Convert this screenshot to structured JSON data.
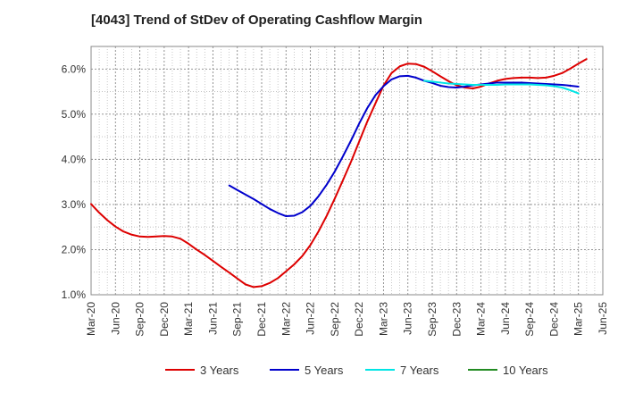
{
  "chart_data": {
    "type": "line",
    "title": "[4043]  Trend of StDev of Operating Cashflow Margin",
    "xlabel": "",
    "ylabel": "",
    "ylim": [
      1.0,
      6.5
    ],
    "yticks": [
      1.0,
      2.0,
      3.0,
      4.0,
      5.0,
      6.0
    ],
    "ytick_labels": [
      "1.0%",
      "2.0%",
      "3.0%",
      "4.0%",
      "5.0%",
      "6.0%"
    ],
    "x_categories": [
      "Mar-20",
      "Jun-20",
      "Sep-20",
      "Dec-20",
      "Mar-21",
      "Jun-21",
      "Sep-21",
      "Dec-21",
      "Mar-22",
      "Jun-22",
      "Sep-22",
      "Dec-22",
      "Mar-23",
      "Jun-23",
      "Sep-23",
      "Dec-23",
      "Mar-24",
      "Jun-24",
      "Sep-24",
      "Dec-24",
      "Mar-25",
      "Jun-25"
    ],
    "grid": true,
    "legend_position": "bottom",
    "series": [
      {
        "name": "3 Years",
        "color": "#dd0000",
        "points": [
          [
            0,
            3.01
          ],
          [
            0.33,
            2.82
          ],
          [
            0.67,
            2.65
          ],
          [
            1,
            2.51
          ],
          [
            1.33,
            2.4
          ],
          [
            1.67,
            2.33
          ],
          [
            2,
            2.29
          ],
          [
            2.33,
            2.28
          ],
          [
            2.67,
            2.29
          ],
          [
            3,
            2.3
          ],
          [
            3.33,
            2.29
          ],
          [
            3.67,
            2.24
          ],
          [
            4,
            2.13
          ],
          [
            4.33,
            2.0
          ],
          [
            4.67,
            1.88
          ],
          [
            5,
            1.75
          ],
          [
            5.33,
            1.62
          ],
          [
            5.67,
            1.49
          ],
          [
            6,
            1.36
          ],
          [
            6.33,
            1.23
          ],
          [
            6.67,
            1.17
          ],
          [
            7,
            1.19
          ],
          [
            7.33,
            1.26
          ],
          [
            7.67,
            1.37
          ],
          [
            8,
            1.52
          ],
          [
            8.33,
            1.67
          ],
          [
            8.67,
            1.86
          ],
          [
            9,
            2.1
          ],
          [
            9.33,
            2.4
          ],
          [
            9.67,
            2.75
          ],
          [
            10,
            3.13
          ],
          [
            10.33,
            3.53
          ],
          [
            10.67,
            3.95
          ],
          [
            11,
            4.39
          ],
          [
            11.33,
            4.83
          ],
          [
            11.67,
            5.24
          ],
          [
            12,
            5.63
          ],
          [
            12.33,
            5.91
          ],
          [
            12.67,
            6.06
          ],
          [
            13,
            6.12
          ],
          [
            13.33,
            6.11
          ],
          [
            13.67,
            6.05
          ],
          [
            14,
            5.95
          ],
          [
            14.33,
            5.84
          ],
          [
            14.67,
            5.73
          ],
          [
            15,
            5.64
          ],
          [
            15.33,
            5.59
          ],
          [
            15.67,
            5.57
          ],
          [
            16,
            5.61
          ],
          [
            16.33,
            5.68
          ],
          [
            16.67,
            5.74
          ],
          [
            17,
            5.78
          ],
          [
            17.33,
            5.8
          ],
          [
            17.67,
            5.81
          ],
          [
            18,
            5.81
          ],
          [
            18.33,
            5.8
          ],
          [
            18.67,
            5.81
          ],
          [
            19,
            5.85
          ],
          [
            19.33,
            5.91
          ],
          [
            19.67,
            6.01
          ],
          [
            20,
            6.12
          ],
          [
            20.33,
            6.22
          ]
        ]
      },
      {
        "name": "5 Years",
        "color": "#0000cc",
        "points": [
          [
            5.67,
            3.42
          ],
          [
            6,
            3.32
          ],
          [
            6.33,
            3.22
          ],
          [
            6.67,
            3.12
          ],
          [
            7,
            3.01
          ],
          [
            7.33,
            2.9
          ],
          [
            7.67,
            2.81
          ],
          [
            8,
            2.74
          ],
          [
            8.33,
            2.75
          ],
          [
            8.67,
            2.83
          ],
          [
            9,
            2.97
          ],
          [
            9.33,
            3.18
          ],
          [
            9.67,
            3.44
          ],
          [
            10,
            3.73
          ],
          [
            10.33,
            4.06
          ],
          [
            10.67,
            4.42
          ],
          [
            11,
            4.79
          ],
          [
            11.33,
            5.13
          ],
          [
            11.67,
            5.42
          ],
          [
            12,
            5.62
          ],
          [
            12.33,
            5.77
          ],
          [
            12.67,
            5.84
          ],
          [
            13,
            5.85
          ],
          [
            13.33,
            5.81
          ],
          [
            13.67,
            5.74
          ],
          [
            14,
            5.69
          ],
          [
            14.33,
            5.63
          ],
          [
            14.67,
            5.6
          ],
          [
            15,
            5.59
          ],
          [
            15.33,
            5.61
          ],
          [
            15.67,
            5.64
          ],
          [
            16,
            5.66
          ],
          [
            16.33,
            5.68
          ],
          [
            16.67,
            5.7
          ],
          [
            17,
            5.7
          ],
          [
            17.33,
            5.7
          ],
          [
            17.67,
            5.7
          ],
          [
            18,
            5.69
          ],
          [
            18.33,
            5.68
          ],
          [
            18.67,
            5.67
          ],
          [
            19,
            5.66
          ],
          [
            19.33,
            5.65
          ],
          [
            19.67,
            5.63
          ],
          [
            20,
            5.61
          ]
        ]
      },
      {
        "name": "7 Years",
        "color": "#00e5e5",
        "points": [
          [
            13.67,
            5.74
          ],
          [
            14,
            5.72
          ],
          [
            14.33,
            5.7
          ],
          [
            14.67,
            5.68
          ],
          [
            15,
            5.67
          ],
          [
            15.33,
            5.66
          ],
          [
            15.67,
            5.65
          ],
          [
            16,
            5.65
          ],
          [
            16.33,
            5.65
          ],
          [
            16.67,
            5.65
          ],
          [
            17,
            5.66
          ],
          [
            17.33,
            5.66
          ],
          [
            17.67,
            5.66
          ],
          [
            18,
            5.66
          ],
          [
            18.33,
            5.65
          ],
          [
            18.67,
            5.64
          ],
          [
            19,
            5.62
          ],
          [
            19.33,
            5.59
          ],
          [
            19.67,
            5.53
          ],
          [
            20,
            5.46
          ]
        ]
      },
      {
        "name": "10 Years",
        "color": "#228b22",
        "points": []
      }
    ]
  }
}
